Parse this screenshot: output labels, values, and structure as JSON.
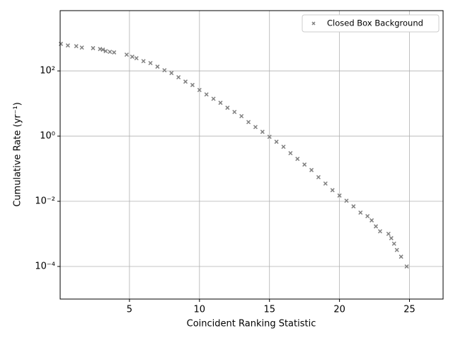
{
  "chart_data": {
    "type": "scatter",
    "xlabel": "Coincident Ranking Statistic",
    "ylabel": "Cumulative Rate (yr⁻¹)",
    "series": [
      {
        "name": "Closed Box Background",
        "color": "#808080",
        "x": [
          0.1,
          0.6,
          1.2,
          1.6,
          2.4,
          2.9,
          3.1,
          3.3,
          3.6,
          3.9,
          4.8,
          5.2,
          5.5,
          6,
          6.5,
          7,
          7.5,
          8,
          8.5,
          9,
          9.5,
          10,
          10.5,
          11,
          11.5,
          12,
          12.5,
          13,
          13.5,
          14,
          14.5,
          15,
          15.5,
          16,
          16.5,
          17,
          17.5,
          18,
          18.5,
          19,
          19.5,
          20,
          20.5,
          21,
          21.5,
          22,
          22.3,
          22.6,
          22.9,
          23.5,
          23.7,
          23.9,
          24.1,
          24.4,
          24.8
        ],
        "values": [
          676,
          605,
          575,
          520,
          500,
          470,
          450,
          405,
          385,
          370,
          316,
          272,
          246,
          200,
          174,
          135,
          105,
          86,
          64,
          47,
          37,
          26,
          19,
          14,
          10.5,
          7.4,
          5.5,
          4.1,
          2.7,
          1.9,
          1.35,
          0.95,
          0.67,
          0.47,
          0.3,
          0.2,
          0.134,
          0.091,
          0.055,
          0.035,
          0.022,
          0.015,
          0.0104,
          0.007,
          0.0045,
          0.0035,
          0.0026,
          0.0017,
          0.0012,
          0.001,
          0.00074,
          0.0005,
          0.00032,
          0.0002,
          0.0001
        ]
      }
    ],
    "xlim": [
      0.05,
      27.4
    ],
    "xticks": [
      5,
      10,
      15,
      20,
      25
    ],
    "ylim": [
      1e-05,
      7079
    ],
    "log_y": true,
    "yticks": [
      {
        "value": 0.0001,
        "label": "10⁻⁴"
      },
      {
        "value": 0.01,
        "label": "10⁻²"
      },
      {
        "value": 1,
        "label": "10⁰"
      },
      {
        "value": 100,
        "label": "10²"
      }
    ],
    "grid": true,
    "legend": "upper right"
  }
}
